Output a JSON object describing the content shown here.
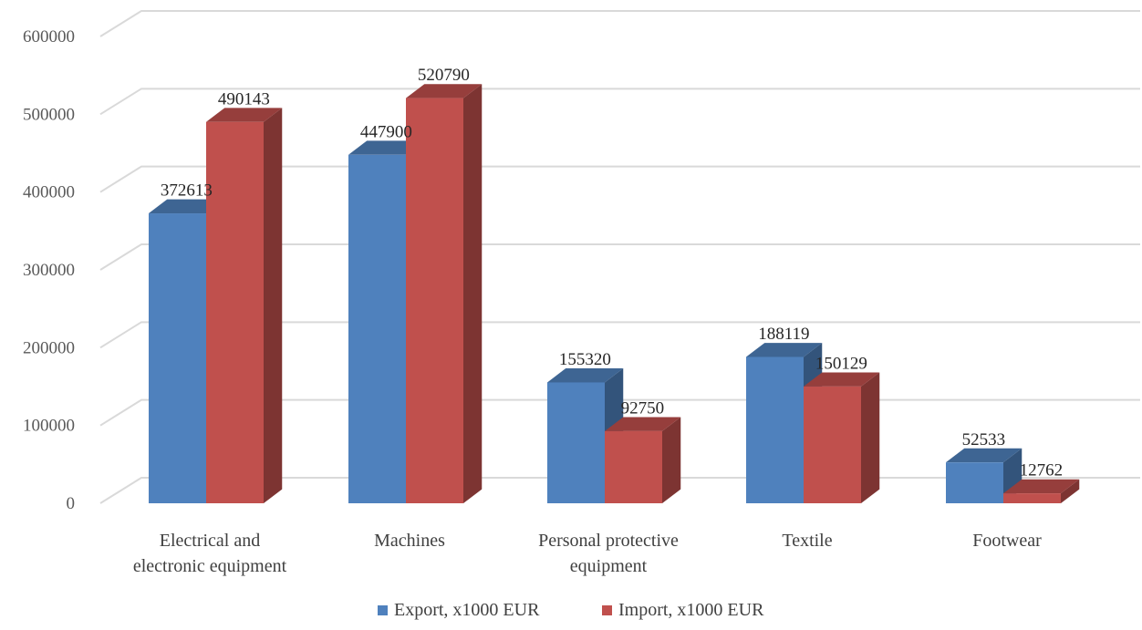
{
  "chart_data": {
    "type": "bar",
    "style": "3d-clustered-column",
    "categories": [
      [
        "Electrical and",
        "electronic equipment"
      ],
      [
        "Machines"
      ],
      [
        "Personal protective",
        "equipment"
      ],
      [
        "Textile"
      ],
      [
        "Footwear"
      ]
    ],
    "series": [
      {
        "name": "Export, x1000 EUR",
        "values": [
          372613,
          447900,
          155320,
          188119,
          52533
        ],
        "color": "#4F81BD"
      },
      {
        "name": "Import, x1000 EUR",
        "values": [
          490143,
          520790,
          92750,
          150129,
          12762
        ],
        "color": "#C0504D"
      }
    ],
    "ylim": [
      0,
      600000
    ],
    "yticks": [
      0,
      100000,
      200000,
      300000,
      400000,
      500000,
      600000
    ],
    "grid": true,
    "legend": "bottom"
  }
}
